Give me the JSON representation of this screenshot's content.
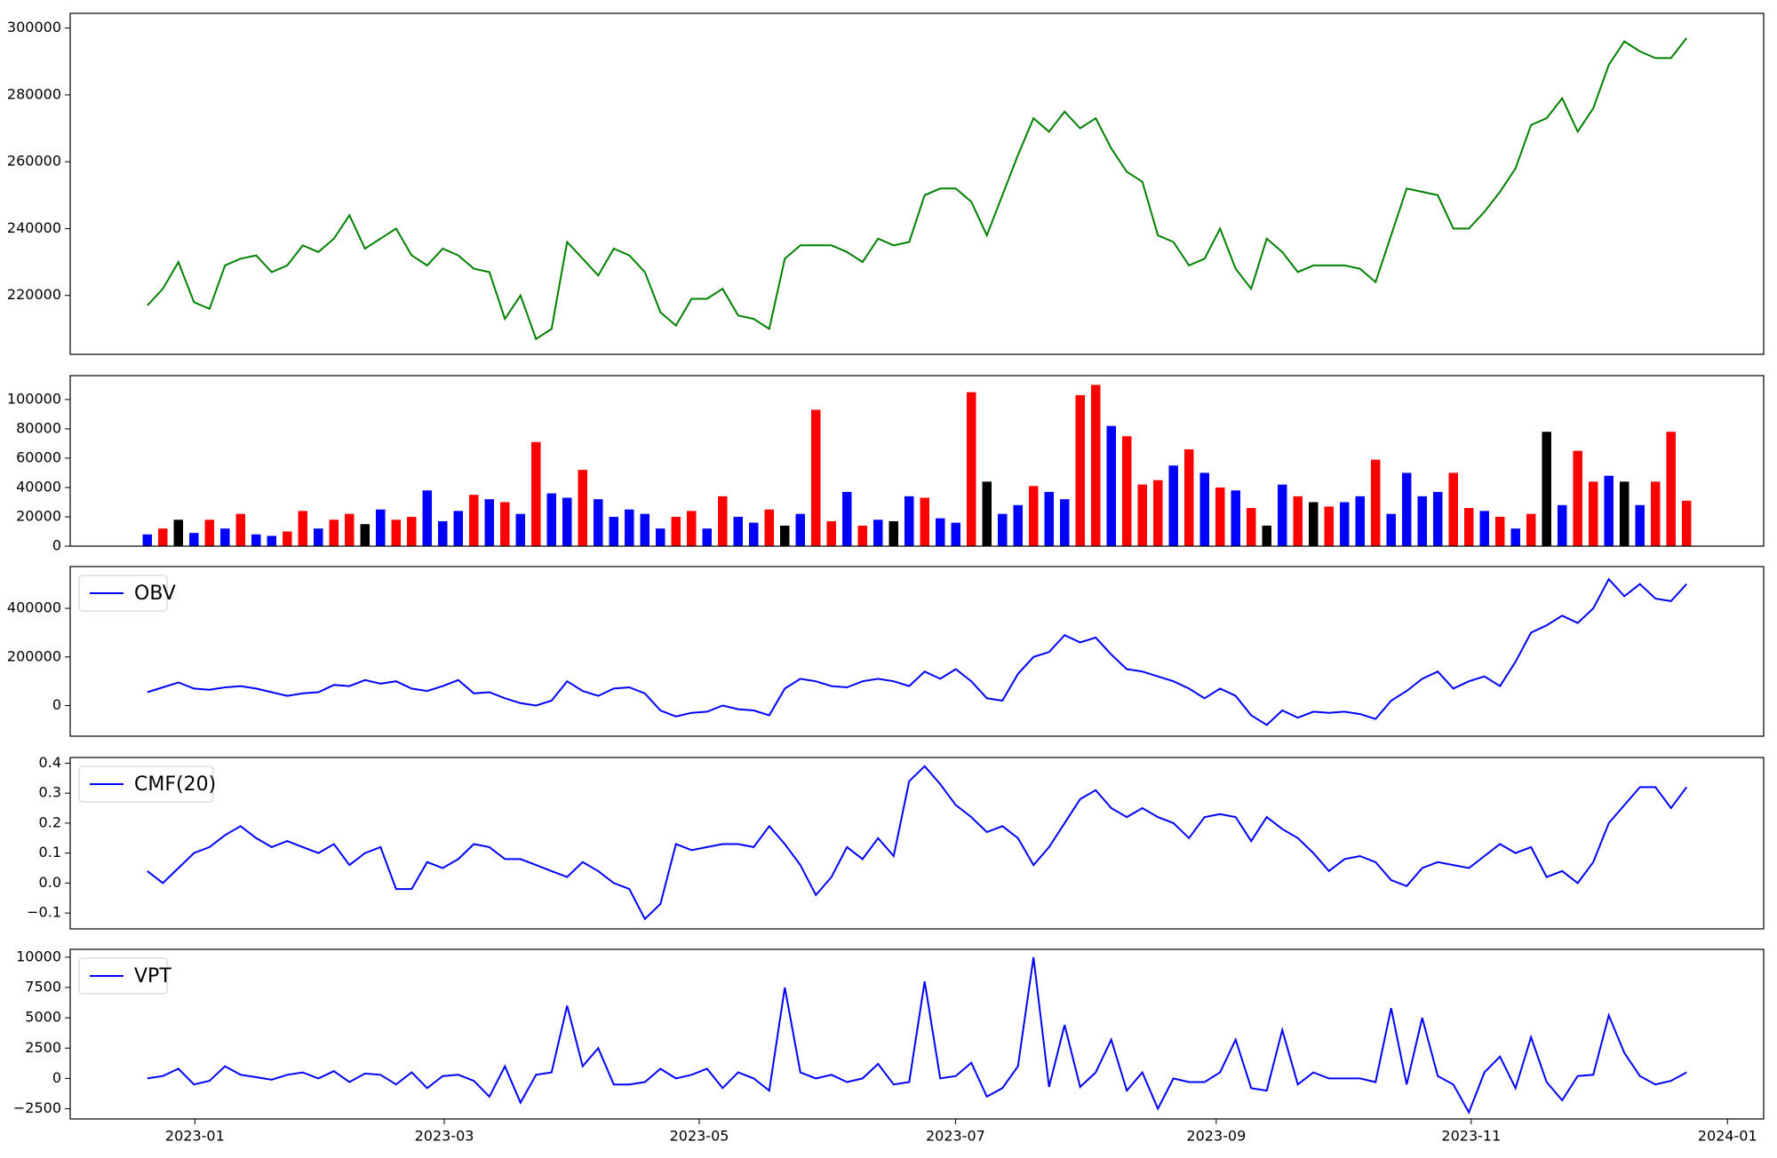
{
  "chart_data": [
    {
      "type": "line",
      "color": "green",
      "xlim": [
        -4.96,
        103.96
      ],
      "ylim": [
        202400,
        304400
      ],
      "yticks": [
        220000,
        240000,
        260000,
        280000,
        300000
      ],
      "values": [
        217000,
        222000,
        230000,
        218000,
        216000,
        229000,
        231000,
        232000,
        227000,
        229000,
        235000,
        233000,
        237000,
        244000,
        234000,
        237000,
        240000,
        232000,
        229000,
        234000,
        232000,
        228000,
        227000,
        213000,
        220000,
        207000,
        210000,
        236000,
        231000,
        226000,
        234000,
        232000,
        227000,
        215000,
        211000,
        219000,
        219000,
        222000,
        214000,
        213000,
        210000,
        231000,
        235000,
        235000,
        235000,
        233000,
        230000,
        237000,
        235000,
        236000,
        250000,
        252000,
        252000,
        248000,
        238000,
        250000,
        262000,
        273000,
        269000,
        275000,
        270000,
        273000,
        264000,
        257000,
        254000,
        238000,
        236000,
        229000,
        231000,
        240000,
        228000,
        222000,
        237000,
        233000,
        227000,
        229000,
        229000,
        229000,
        228000,
        224000,
        238000,
        252000,
        251000,
        250000,
        240000,
        240000,
        245000,
        251000,
        258000,
        271000,
        273000,
        279000,
        269000,
        276000,
        289000,
        296000,
        293000,
        291000,
        291000,
        297000
      ]
    },
    {
      "type": "bar",
      "xlim": [
        -4.96,
        103.96
      ],
      "ylim": [
        0,
        116300
      ],
      "yticks": [
        0,
        20000,
        40000,
        60000,
        80000,
        100000
      ],
      "values": [
        8000,
        12000,
        18000,
        9000,
        18000,
        12000,
        22000,
        8000,
        7000,
        10000,
        24000,
        12000,
        18000,
        22000,
        15000,
        25000,
        18000,
        20000,
        38000,
        17000,
        24000,
        35000,
        32000,
        30000,
        22000,
        71000,
        36000,
        33000,
        52000,
        32000,
        20000,
        25000,
        22000,
        12000,
        20000,
        24000,
        12000,
        34000,
        20000,
        16000,
        25000,
        14000,
        22000,
        93000,
        17000,
        37000,
        14000,
        18000,
        17000,
        34000,
        33000,
        19000,
        16000,
        105000,
        44000,
        22000,
        28000,
        41000,
        37000,
        32000,
        103000,
        110000,
        82000,
        75000,
        42000,
        45000,
        55000,
        66000,
        50000,
        40000,
        38000,
        26000,
        14000,
        42000,
        34000,
        30000,
        27000,
        30000,
        34000,
        59000,
        22000,
        50000,
        34000,
        37000,
        50000,
        26000,
        24000,
        20000,
        12000,
        22000,
        78000,
        28000,
        65000,
        44000,
        48000,
        44000,
        28000,
        44000,
        78000,
        31000
      ],
      "colors": [
        "blue",
        "red",
        "black",
        "blue",
        "red",
        "blue",
        "red",
        "blue",
        "blue",
        "red",
        "red",
        "blue",
        "red",
        "red",
        "black",
        "blue",
        "red",
        "red",
        "blue",
        "blue",
        "blue",
        "red",
        "blue",
        "red",
        "blue",
        "red",
        "blue",
        "blue",
        "red",
        "blue",
        "blue",
        "blue",
        "blue",
        "blue",
        "red",
        "red",
        "blue",
        "red",
        "blue",
        "blue",
        "red",
        "black",
        "blue",
        "red",
        "red",
        "blue",
        "red",
        "blue",
        "black",
        "blue",
        "red",
        "blue",
        "blue",
        "red",
        "black",
        "blue",
        "blue",
        "red",
        "blue",
        "blue",
        "red",
        "red",
        "blue",
        "red",
        "red",
        "red",
        "blue",
        "red",
        "blue",
        "red",
        "blue",
        "red",
        "black",
        "blue",
        "red",
        "black",
        "red",
        "blue",
        "blue",
        "red",
        "blue",
        "blue",
        "blue",
        "blue",
        "red",
        "red",
        "blue",
        "red",
        "blue",
        "red",
        "black",
        "blue",
        "red",
        "red",
        "blue",
        "black",
        "blue",
        "red",
        "red",
        "red"
      ]
    },
    {
      "type": "line",
      "xlim": [
        -4.96,
        103.96
      ],
      "ylim": [
        -126000,
        572000
      ],
      "yticks": [
        0,
        200000,
        400000
      ],
      "series": [
        {
          "name": "OBV",
          "color": "blue",
          "values": [
            55000,
            75000,
            95000,
            70000,
            65000,
            75000,
            80000,
            70000,
            55000,
            40000,
            50000,
            55000,
            85000,
            80000,
            105000,
            90000,
            100000,
            70000,
            60000,
            80000,
            105000,
            50000,
            55000,
            30000,
            10000,
            0,
            20000,
            100000,
            60000,
            40000,
            70000,
            75000,
            50000,
            -20000,
            -45000,
            -30000,
            -25000,
            0,
            -15000,
            -20000,
            -40000,
            70000,
            110000,
            100000,
            80000,
            75000,
            100000,
            110000,
            100000,
            80000,
            140000,
            110000,
            150000,
            100000,
            30000,
            20000,
            130000,
            200000,
            220000,
            290000,
            260000,
            280000,
            210000,
            150000,
            140000,
            120000,
            100000,
            70000,
            30000,
            70000,
            40000,
            -40000,
            -80000,
            -20000,
            -50000,
            -25000,
            -30000,
            -25000,
            -35000,
            -55000,
            20000,
            60000,
            110000,
            140000,
            70000,
            100000,
            120000,
            80000,
            180000,
            300000,
            330000,
            370000,
            340000,
            400000,
            520000,
            450000,
            500000,
            440000,
            430000,
            500000
          ]
        }
      ]
    },
    {
      "type": "line",
      "xlim": [
        -4.96,
        103.96
      ],
      "ylim": [
        -0.153,
        0.419
      ],
      "yticks": [
        {
          "value": -0.1,
          "label": "−0.1"
        },
        {
          "value": 0,
          "label": "0.0"
        },
        0.1,
        0.2,
        0.3,
        0.4
      ],
      "series": [
        {
          "name": "CMF(20)",
          "color": "blue",
          "values": [
            0.04,
            0.0,
            0.05,
            0.1,
            0.12,
            0.16,
            0.19,
            0.15,
            0.12,
            0.14,
            0.12,
            0.1,
            0.13,
            0.06,
            0.1,
            0.12,
            -0.02,
            -0.02,
            0.07,
            0.05,
            0.08,
            0.13,
            0.12,
            0.08,
            0.08,
            0.06,
            0.04,
            0.02,
            0.07,
            0.04,
            0.0,
            -0.02,
            -0.12,
            -0.07,
            0.13,
            0.11,
            0.12,
            0.13,
            0.13,
            0.12,
            0.19,
            0.13,
            0.06,
            -0.04,
            0.02,
            0.12,
            0.08,
            0.15,
            0.09,
            0.34,
            0.39,
            0.33,
            0.26,
            0.22,
            0.17,
            0.19,
            0.15,
            0.06,
            0.12,
            0.2,
            0.28,
            0.31,
            0.25,
            0.22,
            0.25,
            0.22,
            0.2,
            0.15,
            0.22,
            0.23,
            0.22,
            0.14,
            0.22,
            0.18,
            0.15,
            0.1,
            0.04,
            0.08,
            0.09,
            0.07,
            0.01,
            -0.01,
            0.05,
            0.07,
            0.06,
            0.05,
            0.09,
            0.13,
            0.1,
            0.12,
            0.02,
            0.04,
            0.0,
            0.07,
            0.2,
            0.26,
            0.32,
            0.32,
            0.25,
            0.32
          ]
        }
      ]
    },
    {
      "type": "line",
      "xlim": [
        -4.96,
        103.96
      ],
      "ylim": [
        -3340,
        10650
      ],
      "yticks": [
        {
          "value": -2500,
          "label": "−2500"
        },
        0,
        2500,
        5000,
        7500,
        10000
      ],
      "xticks": [
        {
          "value": 3.06,
          "label": "2023-01"
        },
        {
          "value": 19.1,
          "label": "2023-03"
        },
        {
          "value": 35.5,
          "label": "2023-05"
        },
        {
          "value": 51.98,
          "label": "2023-07"
        },
        {
          "value": 68.75,
          "label": "2023-09"
        },
        {
          "value": 85.15,
          "label": "2023-11"
        },
        {
          "value": 101.63,
          "label": "2024-01"
        }
      ],
      "series": [
        {
          "name": "VPT",
          "color": "blue",
          "values": [
            0,
            200,
            800,
            -500,
            -200,
            1000,
            300,
            100,
            -100,
            300,
            500,
            0,
            600,
            -300,
            400,
            300,
            -500,
            500,
            -800,
            200,
            300,
            -200,
            -1500,
            1000,
            -2000,
            300,
            500,
            6000,
            1000,
            2500,
            -500,
            -500,
            -300,
            800,
            0,
            300,
            800,
            -800,
            500,
            0,
            -1000,
            7500,
            500,
            0,
            300,
            -300,
            0,
            1200,
            -500,
            -300,
            8000,
            0,
            200,
            1300,
            -1500,
            -800,
            1000,
            10000,
            -700,
            4400,
            -700,
            500,
            3200,
            -1000,
            500,
            -2500,
            0,
            -300,
            -300,
            500,
            3200,
            -800,
            -1000,
            4000,
            -500,
            500,
            0,
            0,
            0,
            -300,
            5800,
            -500,
            5000,
            200,
            -500,
            -2800,
            500,
            1800,
            -800,
            3400,
            -300,
            -1800,
            200,
            300,
            5200,
            2100,
            200,
            -500,
            -200,
            500
          ]
        }
      ]
    }
  ]
}
